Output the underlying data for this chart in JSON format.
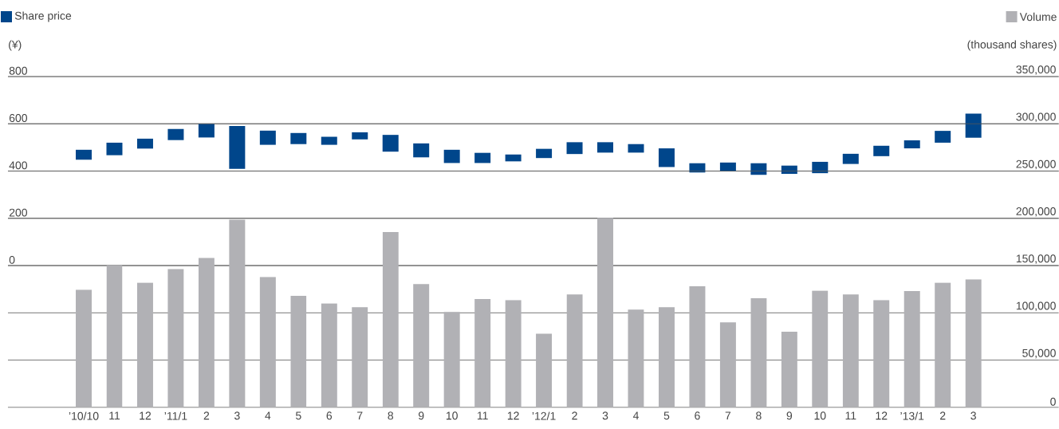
{
  "chart_data": {
    "type": "bar",
    "categories": [
      "’10/10",
      "11",
      "12",
      "’11/1",
      "2",
      "3",
      "4",
      "5",
      "6",
      "7",
      "8",
      "9",
      "10",
      "11",
      "12",
      "’12/1",
      "2",
      "3",
      "4",
      "5",
      "6",
      "7",
      "8",
      "9",
      "10",
      "11",
      "12",
      "’13/1",
      "2",
      "3"
    ],
    "ylabel": "(¥)",
    "y2label": "(thousand shares)",
    "ylim": [
      -600,
      800
    ],
    "yticks": [
      0,
      200,
      400,
      600,
      800
    ],
    "y2lim": [
      0,
      350000
    ],
    "y2ticks": [
      0,
      {
        "value": 50000,
        "label": "50,000"
      },
      {
        "value": 100000,
        "label": "100,000"
      },
      {
        "value": 150000,
        "label": "150,000"
      },
      {
        "value": 200000,
        "label": "200,000"
      },
      {
        "value": 250000,
        "label": "250,000"
      },
      {
        "value": 300000,
        "label": "300,000"
      },
      {
        "value": 350000,
        "label": "350,000"
      }
    ],
    "grid": "y",
    "legend": "top",
    "series": [
      {
        "name": "Share price",
        "color": "#00468b",
        "base": [
          448,
          467,
          495,
          531,
          542,
          409,
          511,
          514,
          511,
          534,
          482,
          458,
          434,
          434,
          441,
          455,
          472,
          478,
          478,
          417,
          394,
          399,
          384,
          388,
          391,
          430,
          463,
          496,
          520,
          541
        ],
        "values": [
          42,
          53,
          42,
          47,
          58,
          182,
          60,
          47,
          34,
          30,
          71,
          59,
          56,
          43,
          29,
          39,
          50,
          44,
          36,
          79,
          39,
          37,
          49,
          35,
          48,
          43,
          44,
          34,
          50,
          102
        ]
      },
      {
        "name": "Volume",
        "color": "#b1b1b5",
        "axis": "y2",
        "values": [
          124500,
          150500,
          132000,
          146500,
          158000,
          198500,
          138000,
          118000,
          110000,
          106000,
          185500,
          130500,
          101000,
          114500,
          113500,
          78000,
          119500,
          200500,
          103500,
          106000,
          128000,
          90000,
          115500,
          80000,
          123500,
          119500,
          113500,
          123000,
          132000,
          135500
        ]
      }
    ]
  }
}
